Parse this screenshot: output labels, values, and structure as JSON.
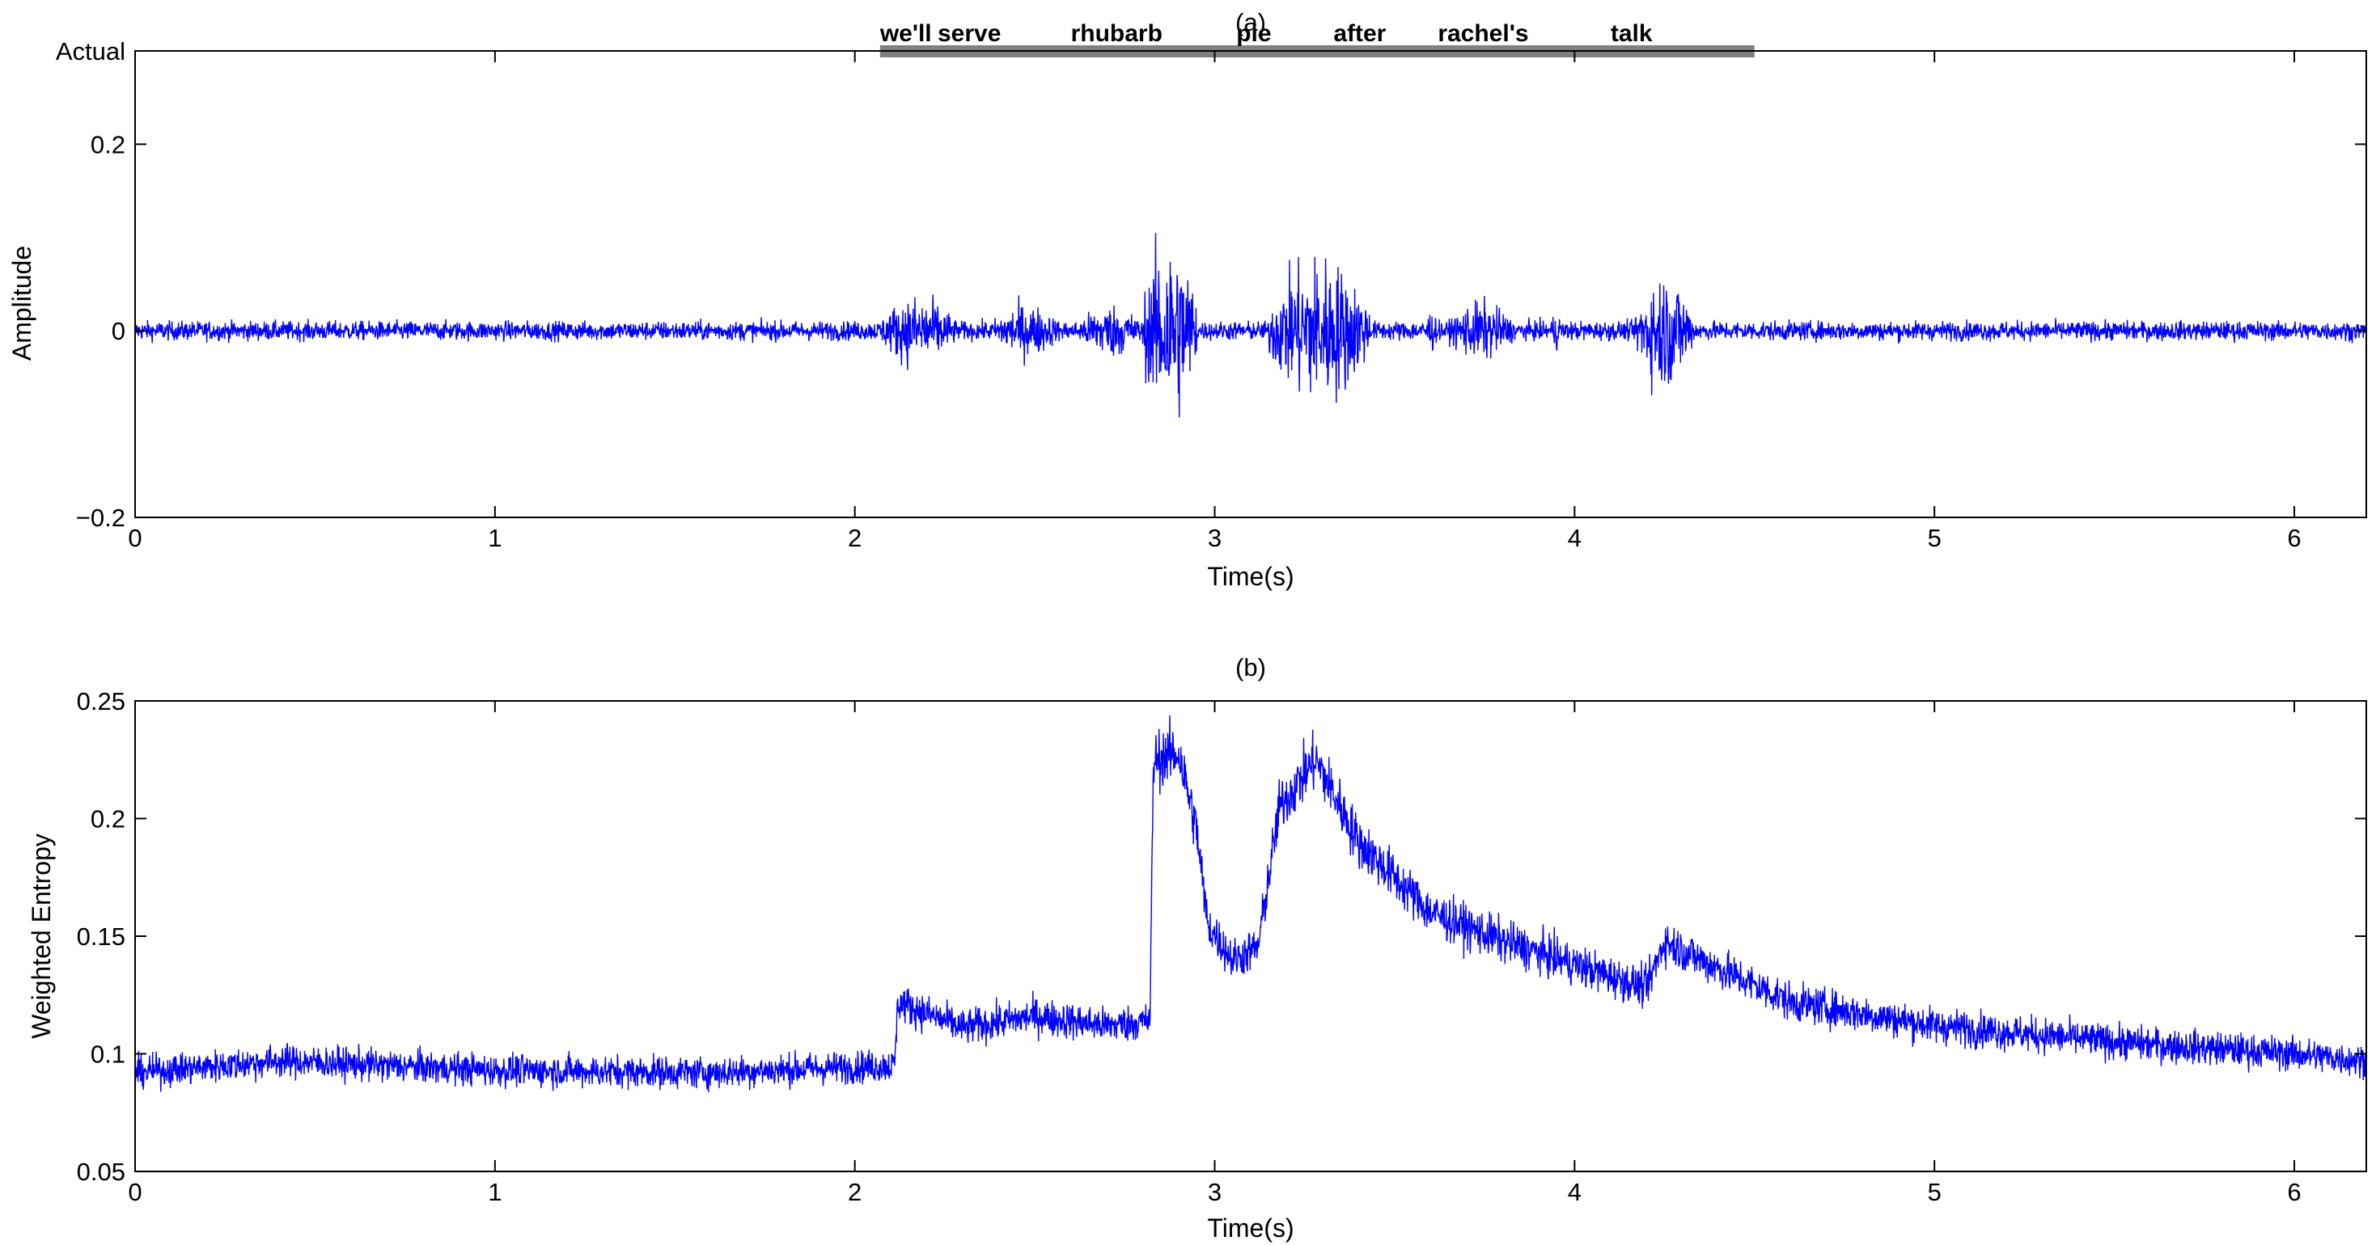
{
  "chart_data": [
    {
      "type": "line",
      "title": "(a)",
      "xlabel": "Time(s)",
      "ylabel": "Amplitude",
      "xlim": [
        0,
        6.2
      ],
      "ylim": [
        -0.2,
        0.3
      ],
      "grid": false,
      "x_ticks": [
        0,
        1,
        2,
        3,
        4,
        5,
        6
      ],
      "y_ticks": [
        {
          "value": -0.2,
          "label": "−0.2"
        },
        {
          "value": 0,
          "label": "0"
        },
        {
          "value": 0.2,
          "label": "0.2"
        },
        {
          "value": 0.3,
          "label": "Actual"
        }
      ],
      "series": [
        {
          "color": "#0000ff",
          "noise_amplitude": 0.018,
          "bursts": [
            {
              "start": 2.07,
              "end": 2.28,
              "peak": 0.065
            },
            {
              "start": 2.38,
              "end": 2.57,
              "peak": 0.05
            },
            {
              "start": 2.62,
              "end": 2.8,
              "peak": 0.05
            },
            {
              "start": 2.8,
              "end": 2.95,
              "peak": 0.175
            },
            {
              "start": 3.15,
              "end": 3.43,
              "peak": 0.14
            },
            {
              "start": 3.58,
              "end": 3.62,
              "peak": 0.04
            },
            {
              "start": 3.65,
              "end": 3.83,
              "peak": 0.055
            },
            {
              "start": 3.93,
              "end": 3.97,
              "peak": 0.035
            },
            {
              "start": 4.17,
              "end": 4.33,
              "peak": 0.11
            }
          ]
        }
      ],
      "annotation_bar": {
        "y": 0.3,
        "x_start": 2.07,
        "x_end": 4.5,
        "color": "#808080"
      },
      "words": [
        {
          "text": "we'll",
          "x": 2.07
        },
        {
          "text": "serve",
          "x": 2.23
        },
        {
          "text": "rhubarb",
          "x": 2.6
        },
        {
          "text": "pie",
          "x": 3.06
        },
        {
          "text": "after",
          "x": 3.33
        },
        {
          "text": "rachel's",
          "x": 3.62
        },
        {
          "text": "talk",
          "x": 4.1
        }
      ]
    },
    {
      "type": "line",
      "title": "(b)",
      "xlabel": "Time(s)",
      "ylabel": "Weighted Entropy",
      "xlim": [
        0,
        6.2
      ],
      "ylim": [
        0.05,
        0.25
      ],
      "grid": false,
      "x_ticks": [
        0,
        1,
        2,
        3,
        4,
        5,
        6
      ],
      "y_ticks": [
        {
          "value": 0.05,
          "label": "0.05"
        },
        {
          "value": 0.1,
          "label": "0.1"
        },
        {
          "value": 0.15,
          "label": "0.15"
        },
        {
          "value": 0.2,
          "label": "0.2"
        },
        {
          "value": 0.25,
          "label": "0.25"
        }
      ],
      "series": [
        {
          "color": "#0000ff",
          "noise_amplitude": 0.007,
          "envelope": [
            {
              "x": 0.0,
              "y": 0.092
            },
            {
              "x": 0.4,
              "y": 0.097
            },
            {
              "x": 1.0,
              "y": 0.093
            },
            {
              "x": 1.6,
              "y": 0.092
            },
            {
              "x": 2.11,
              "y": 0.095
            },
            {
              "x": 2.12,
              "y": 0.122
            },
            {
              "x": 2.3,
              "y": 0.111
            },
            {
              "x": 2.5,
              "y": 0.116
            },
            {
              "x": 2.7,
              "y": 0.112
            },
            {
              "x": 2.82,
              "y": 0.114
            },
            {
              "x": 2.83,
              "y": 0.225
            },
            {
              "x": 2.9,
              "y": 0.228
            },
            {
              "x": 2.95,
              "y": 0.195
            },
            {
              "x": 2.98,
              "y": 0.155
            },
            {
              "x": 3.05,
              "y": 0.14
            },
            {
              "x": 3.12,
              "y": 0.145
            },
            {
              "x": 3.18,
              "y": 0.205
            },
            {
              "x": 3.28,
              "y": 0.225
            },
            {
              "x": 3.4,
              "y": 0.19
            },
            {
              "x": 3.6,
              "y": 0.16
            },
            {
              "x": 3.8,
              "y": 0.148
            },
            {
              "x": 4.0,
              "y": 0.138
            },
            {
              "x": 4.2,
              "y": 0.128
            },
            {
              "x": 4.25,
              "y": 0.148
            },
            {
              "x": 4.35,
              "y": 0.14
            },
            {
              "x": 4.6,
              "y": 0.122
            },
            {
              "x": 5.0,
              "y": 0.112
            },
            {
              "x": 5.5,
              "y": 0.105
            },
            {
              "x": 6.0,
              "y": 0.1
            },
            {
              "x": 6.2,
              "y": 0.097
            }
          ]
        }
      ]
    }
  ]
}
